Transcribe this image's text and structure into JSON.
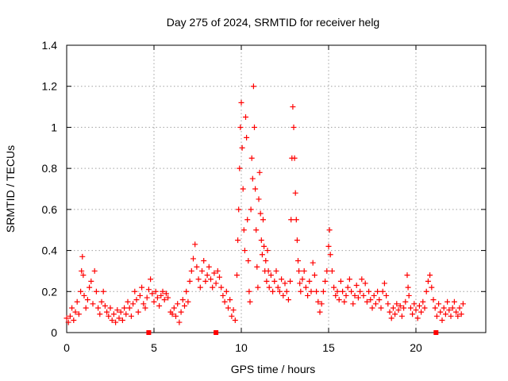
{
  "chart_data": {
    "type": "scatter",
    "title": "Day 275 of 2024, SRMTID for receiver helg",
    "xlabel": "GPS time / hours",
    "ylabel": "SRMTID / TECUs",
    "xlim": [
      0,
      24
    ],
    "ylim": [
      0,
      1.4
    ],
    "grid": true,
    "legend": "none",
    "marker": "+",
    "color": "#ff0000",
    "xticks": [
      0,
      5,
      10,
      15,
      20
    ],
    "xtick_labels": [
      "0",
      "5",
      "10",
      "15",
      "20"
    ],
    "yticks": [
      0,
      0.2,
      0.4,
      0.6,
      0.8,
      1.0,
      1.2,
      1.4
    ],
    "ytick_labels": [
      "0",
      "0.2",
      "0.4",
      "0.6",
      "0.8",
      "1",
      "1.2",
      "1.4"
    ],
    "series": [
      {
        "name": "SRMTID",
        "marker": "+",
        "points": [
          [
            0.0,
            0.07
          ],
          [
            0.1,
            0.05
          ],
          [
            0.2,
            0.08
          ],
          [
            0.3,
            0.12
          ],
          [
            0.4,
            0.06
          ],
          [
            0.5,
            0.1
          ],
          [
            0.6,
            0.15
          ],
          [
            0.7,
            0.09
          ],
          [
            0.8,
            0.2
          ],
          [
            0.85,
            0.3
          ],
          [
            0.9,
            0.37
          ],
          [
            0.95,
            0.28
          ],
          [
            1.0,
            0.18
          ],
          [
            1.1,
            0.12
          ],
          [
            1.2,
            0.16
          ],
          [
            1.3,
            0.22
          ],
          [
            1.4,
            0.25
          ],
          [
            1.5,
            0.14
          ],
          [
            1.6,
            0.3
          ],
          [
            1.7,
            0.2
          ],
          [
            1.8,
            0.12
          ],
          [
            1.9,
            0.09
          ],
          [
            2.0,
            0.15
          ],
          [
            2.1,
            0.2
          ],
          [
            2.2,
            0.13
          ],
          [
            2.3,
            0.1
          ],
          [
            2.4,
            0.08
          ],
          [
            2.5,
            0.12
          ],
          [
            2.6,
            0.06
          ],
          [
            2.7,
            0.09
          ],
          [
            2.8,
            0.05
          ],
          [
            2.9,
            0.11
          ],
          [
            3.0,
            0.07
          ],
          [
            3.1,
            0.1
          ],
          [
            3.2,
            0.06
          ],
          [
            3.3,
            0.12
          ],
          [
            3.4,
            0.09
          ],
          [
            3.5,
            0.15
          ],
          [
            3.6,
            0.12
          ],
          [
            3.7,
            0.08
          ],
          [
            3.8,
            0.14
          ],
          [
            3.9,
            0.2
          ],
          [
            4.0,
            0.16
          ],
          [
            4.1,
            0.1
          ],
          [
            4.2,
            0.18
          ],
          [
            4.3,
            0.22
          ],
          [
            4.4,
            0.14
          ],
          [
            4.5,
            0.12
          ],
          [
            4.6,
            0.17
          ],
          [
            4.7,
            0.21
          ],
          [
            4.8,
            0.26
          ],
          [
            4.9,
            0.19
          ],
          [
            5.0,
            0.15
          ],
          [
            5.1,
            0.2
          ],
          [
            5.2,
            0.17
          ],
          [
            5.3,
            0.13
          ],
          [
            5.4,
            0.18
          ],
          [
            5.5,
            0.2
          ],
          [
            5.6,
            0.16
          ],
          [
            5.7,
            0.19
          ],
          [
            5.8,
            0.17
          ],
          [
            5.95,
            0.1
          ],
          [
            6.05,
            0.09
          ],
          [
            6.15,
            0.12
          ],
          [
            6.25,
            0.08
          ],
          [
            6.35,
            0.14
          ],
          [
            6.45,
            0.05
          ],
          [
            6.55,
            0.1
          ],
          [
            6.65,
            0.16
          ],
          [
            6.75,
            0.13
          ],
          [
            6.85,
            0.2
          ],
          [
            6.95,
            0.15
          ],
          [
            7.05,
            0.25
          ],
          [
            7.15,
            0.3
          ],
          [
            7.25,
            0.36
          ],
          [
            7.35,
            0.43
          ],
          [
            7.45,
            0.32
          ],
          [
            7.55,
            0.26
          ],
          [
            7.65,
            0.22
          ],
          [
            7.75,
            0.3
          ],
          [
            7.85,
            0.35
          ],
          [
            7.95,
            0.25
          ],
          [
            8.05,
            0.28
          ],
          [
            8.15,
            0.32
          ],
          [
            8.25,
            0.26
          ],
          [
            8.35,
            0.22
          ],
          [
            8.45,
            0.29
          ],
          [
            8.55,
            0.24
          ],
          [
            8.65,
            0.3
          ],
          [
            8.75,
            0.27
          ],
          [
            8.85,
            0.22
          ],
          [
            8.95,
            0.18
          ],
          [
            9.05,
            0.15
          ],
          [
            9.15,
            0.2
          ],
          [
            9.25,
            0.12
          ],
          [
            9.35,
            0.16
          ],
          [
            9.45,
            0.08
          ],
          [
            9.55,
            0.11
          ],
          [
            9.65,
            0.06
          ],
          [
            9.75,
            0.28
          ],
          [
            9.8,
            0.45
          ],
          [
            9.85,
            0.6
          ],
          [
            9.9,
            0.8
          ],
          [
            9.95,
            1.0
          ],
          [
            10.0,
            1.12
          ],
          [
            10.05,
            0.9
          ],
          [
            10.1,
            0.7
          ],
          [
            10.15,
            0.5
          ],
          [
            10.2,
            0.4
          ],
          [
            10.25,
            1.05
          ],
          [
            10.3,
            0.95
          ],
          [
            10.35,
            0.55
          ],
          [
            10.4,
            0.35
          ],
          [
            10.45,
            0.2
          ],
          [
            10.5,
            0.15
          ],
          [
            10.55,
            0.6
          ],
          [
            10.6,
            0.85
          ],
          [
            10.65,
            0.75
          ],
          [
            10.7,
            1.2
          ],
          [
            10.75,
            1.0
          ],
          [
            10.8,
            0.7
          ],
          [
            10.85,
            0.5
          ],
          [
            10.9,
            0.32
          ],
          [
            10.95,
            0.22
          ],
          [
            11.0,
            0.65
          ],
          [
            11.05,
            0.78
          ],
          [
            11.1,
            0.58
          ],
          [
            11.15,
            0.45
          ],
          [
            11.2,
            0.38
          ],
          [
            11.25,
            0.55
          ],
          [
            11.3,
            0.42
          ],
          [
            11.35,
            0.3
          ],
          [
            11.4,
            0.35
          ],
          [
            11.45,
            0.25
          ],
          [
            11.5,
            0.4
          ],
          [
            11.55,
            0.3
          ],
          [
            11.6,
            0.22
          ],
          [
            11.7,
            0.28
          ],
          [
            11.8,
            0.2
          ],
          [
            11.9,
            0.25
          ],
          [
            12.0,
            0.3
          ],
          [
            12.1,
            0.22
          ],
          [
            12.2,
            0.2
          ],
          [
            12.3,
            0.26
          ],
          [
            12.4,
            0.18
          ],
          [
            12.5,
            0.24
          ],
          [
            12.6,
            0.2
          ],
          [
            12.7,
            0.16
          ],
          [
            12.8,
            0.25
          ],
          [
            12.85,
            0.55
          ],
          [
            12.9,
            0.85
          ],
          [
            12.95,
            1.1
          ],
          [
            13.0,
            1.0
          ],
          [
            13.05,
            0.85
          ],
          [
            13.1,
            0.68
          ],
          [
            13.15,
            0.55
          ],
          [
            13.2,
            0.45
          ],
          [
            13.25,
            0.35
          ],
          [
            13.3,
            0.3
          ],
          [
            13.35,
            0.24
          ],
          [
            13.4,
            0.2
          ],
          [
            13.5,
            0.26
          ],
          [
            13.6,
            0.3
          ],
          [
            13.7,
            0.22
          ],
          [
            13.8,
            0.18
          ],
          [
            13.9,
            0.25
          ],
          [
            14.0,
            0.2
          ],
          [
            14.1,
            0.34
          ],
          [
            14.2,
            0.28
          ],
          [
            14.3,
            0.2
          ],
          [
            14.4,
            0.15
          ],
          [
            14.5,
            0.1
          ],
          [
            14.6,
            0.14
          ],
          [
            14.7,
            0.2
          ],
          [
            14.8,
            0.25
          ],
          [
            14.9,
            0.3
          ],
          [
            15.0,
            0.42
          ],
          [
            15.05,
            0.5
          ],
          [
            15.1,
            0.38
          ],
          [
            15.2,
            0.3
          ],
          [
            15.3,
            0.22
          ],
          [
            15.4,
            0.18
          ],
          [
            15.5,
            0.2
          ],
          [
            15.6,
            0.16
          ],
          [
            15.7,
            0.25
          ],
          [
            15.8,
            0.2
          ],
          [
            15.9,
            0.15
          ],
          [
            16.0,
            0.18
          ],
          [
            16.1,
            0.22
          ],
          [
            16.2,
            0.26
          ],
          [
            16.3,
            0.2
          ],
          [
            16.4,
            0.14
          ],
          [
            16.5,
            0.18
          ],
          [
            16.6,
            0.23
          ],
          [
            16.7,
            0.17
          ],
          [
            16.8,
            0.2
          ],
          [
            16.9,
            0.26
          ],
          [
            17.0,
            0.18
          ],
          [
            17.1,
            0.24
          ],
          [
            17.2,
            0.15
          ],
          [
            17.3,
            0.2
          ],
          [
            17.4,
            0.16
          ],
          [
            17.5,
            0.12
          ],
          [
            17.6,
            0.18
          ],
          [
            17.7,
            0.14
          ],
          [
            17.8,
            0.2
          ],
          [
            17.9,
            0.16
          ],
          [
            18.0,
            0.12
          ],
          [
            18.1,
            0.2
          ],
          [
            18.2,
            0.24
          ],
          [
            18.3,
            0.18
          ],
          [
            18.4,
            0.14
          ],
          [
            18.5,
            0.1
          ],
          [
            18.6,
            0.07
          ],
          [
            18.7,
            0.12
          ],
          [
            18.8,
            0.09
          ],
          [
            18.9,
            0.14
          ],
          [
            19.0,
            0.11
          ],
          [
            19.1,
            0.13
          ],
          [
            19.2,
            0.08
          ],
          [
            19.3,
            0.12
          ],
          [
            19.4,
            0.15
          ],
          [
            19.5,
            0.28
          ],
          [
            19.55,
            0.22
          ],
          [
            19.6,
            0.18
          ],
          [
            19.7,
            0.12
          ],
          [
            19.8,
            0.09
          ],
          [
            19.9,
            0.14
          ],
          [
            20.0,
            0.11
          ],
          [
            20.1,
            0.07
          ],
          [
            20.2,
            0.13
          ],
          [
            20.3,
            0.1
          ],
          [
            20.4,
            0.15
          ],
          [
            20.5,
            0.12
          ],
          [
            20.6,
            0.2
          ],
          [
            20.7,
            0.25
          ],
          [
            20.8,
            0.28
          ],
          [
            20.9,
            0.22
          ],
          [
            21.0,
            0.16
          ],
          [
            21.1,
            0.12
          ],
          [
            21.2,
            0.08
          ],
          [
            21.3,
            0.14
          ],
          [
            21.4,
            0.1
          ],
          [
            21.5,
            0.06
          ],
          [
            21.6,
            0.12
          ],
          [
            21.7,
            0.09
          ],
          [
            21.8,
            0.15
          ],
          [
            21.9,
            0.11
          ],
          [
            22.0,
            0.08
          ],
          [
            22.1,
            0.12
          ],
          [
            22.2,
            0.15
          ],
          [
            22.3,
            0.1
          ],
          [
            22.4,
            0.08
          ],
          [
            22.5,
            0.12
          ],
          [
            22.6,
            0.09
          ],
          [
            22.7,
            0.14
          ]
        ]
      }
    ],
    "gap_markers": {
      "y": 0,
      "x": [
        4.7,
        8.55,
        21.15
      ]
    }
  }
}
